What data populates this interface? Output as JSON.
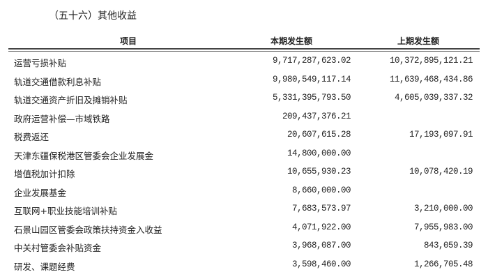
{
  "title": "（五十六）其他收益",
  "headers": {
    "item": "项目",
    "current": "本期发生额",
    "previous": "上期发生额"
  },
  "rows": [
    {
      "item": "运营亏损补贴",
      "current": "9,717,287,623.02",
      "previous": "10,372,895,121.21"
    },
    {
      "item": "轨道交通借款利息补贴",
      "current": "9,980,549,117.14",
      "previous": "11,639,468,434.86"
    },
    {
      "item": "轨道交通资产折旧及摊销补贴",
      "current": "5,331,395,793.50",
      "previous": "4,605,039,337.32"
    },
    {
      "item": "政府运营补偿—市域铁路",
      "current": "209,437,376.21",
      "previous": ""
    },
    {
      "item": "税费返还",
      "current": "20,607,615.28",
      "previous": "17,193,097.91"
    },
    {
      "item": "天津东疆保税港区管委会企业发展金",
      "current": "14,800,000.00",
      "previous": ""
    },
    {
      "item": "增值税加计扣除",
      "current": "10,655,930.23",
      "previous": "10,078,420.19"
    },
    {
      "item": "企业发展基金",
      "current": "8,660,000.00",
      "previous": ""
    },
    {
      "item": "互联网+职业技能培训补贴",
      "current": "7,683,573.97",
      "previous": "3,210,000.00"
    },
    {
      "item": "石景山园区管委会政策扶持资金入收益",
      "current": "4,071,922.00",
      "previous": "7,955,983.00"
    },
    {
      "item": "中关村管委会补贴资金",
      "current": "3,968,087.00",
      "previous": "843,059.39"
    },
    {
      "item": "研发、课题经费",
      "current": "3,598,460.00",
      "previous": "1,266,705.48"
    }
  ]
}
